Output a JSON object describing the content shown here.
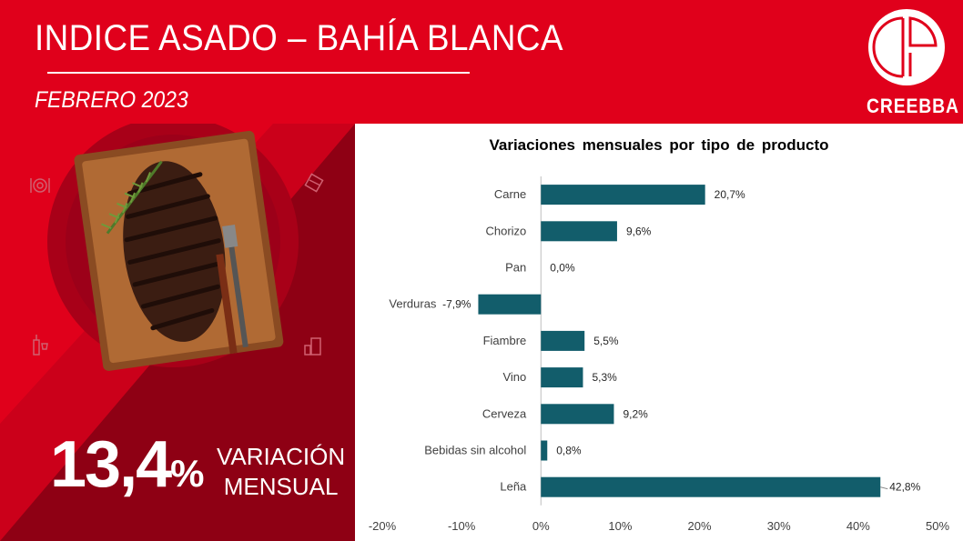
{
  "header": {
    "title": "INDICE ASADO – BAHÍA BLANCA",
    "subtitle": "FEBRERO 2023",
    "logo_text": "CREEBBA"
  },
  "highlight": {
    "value": "13,4",
    "unit": "%",
    "label_line1": "VARIACIÓN",
    "label_line2": "MENSUAL"
  },
  "colors": {
    "brand_red": "#e0001b",
    "dark_red": "#8e0014",
    "bar": "#125d6b"
  },
  "icons": [
    "steak-board-icon",
    "dishes-icon",
    "grill-icon",
    "wine-bottle-icon",
    "drinks-icon"
  ],
  "chart_data": {
    "type": "bar",
    "orientation": "horizontal",
    "title": "Variaciones mensuales por tipo de producto",
    "categories": [
      "Carne",
      "Chorizo",
      "Pan",
      "Verduras",
      "Fiambre",
      "Vino",
      "Cerveza",
      "Bebidas sin alcohol",
      "Leña"
    ],
    "values": [
      20.7,
      9.6,
      0.0,
      -7.9,
      5.5,
      5.3,
      9.2,
      0.8,
      42.8
    ],
    "value_labels": [
      "20,7%",
      "9,6%",
      "0,0%",
      "-7,9%",
      "5,5%",
      "5,3%",
      "9,2%",
      "0,8%",
      "42,8%"
    ],
    "xlim": [
      -20,
      50
    ],
    "xticks": [
      -20,
      -10,
      0,
      10,
      20,
      30,
      40,
      50
    ],
    "xtick_labels": [
      "-20%",
      "-10%",
      "0%",
      "10%",
      "20%",
      "30%",
      "40%",
      "50%"
    ],
    "grid": false,
    "legend": "none"
  }
}
